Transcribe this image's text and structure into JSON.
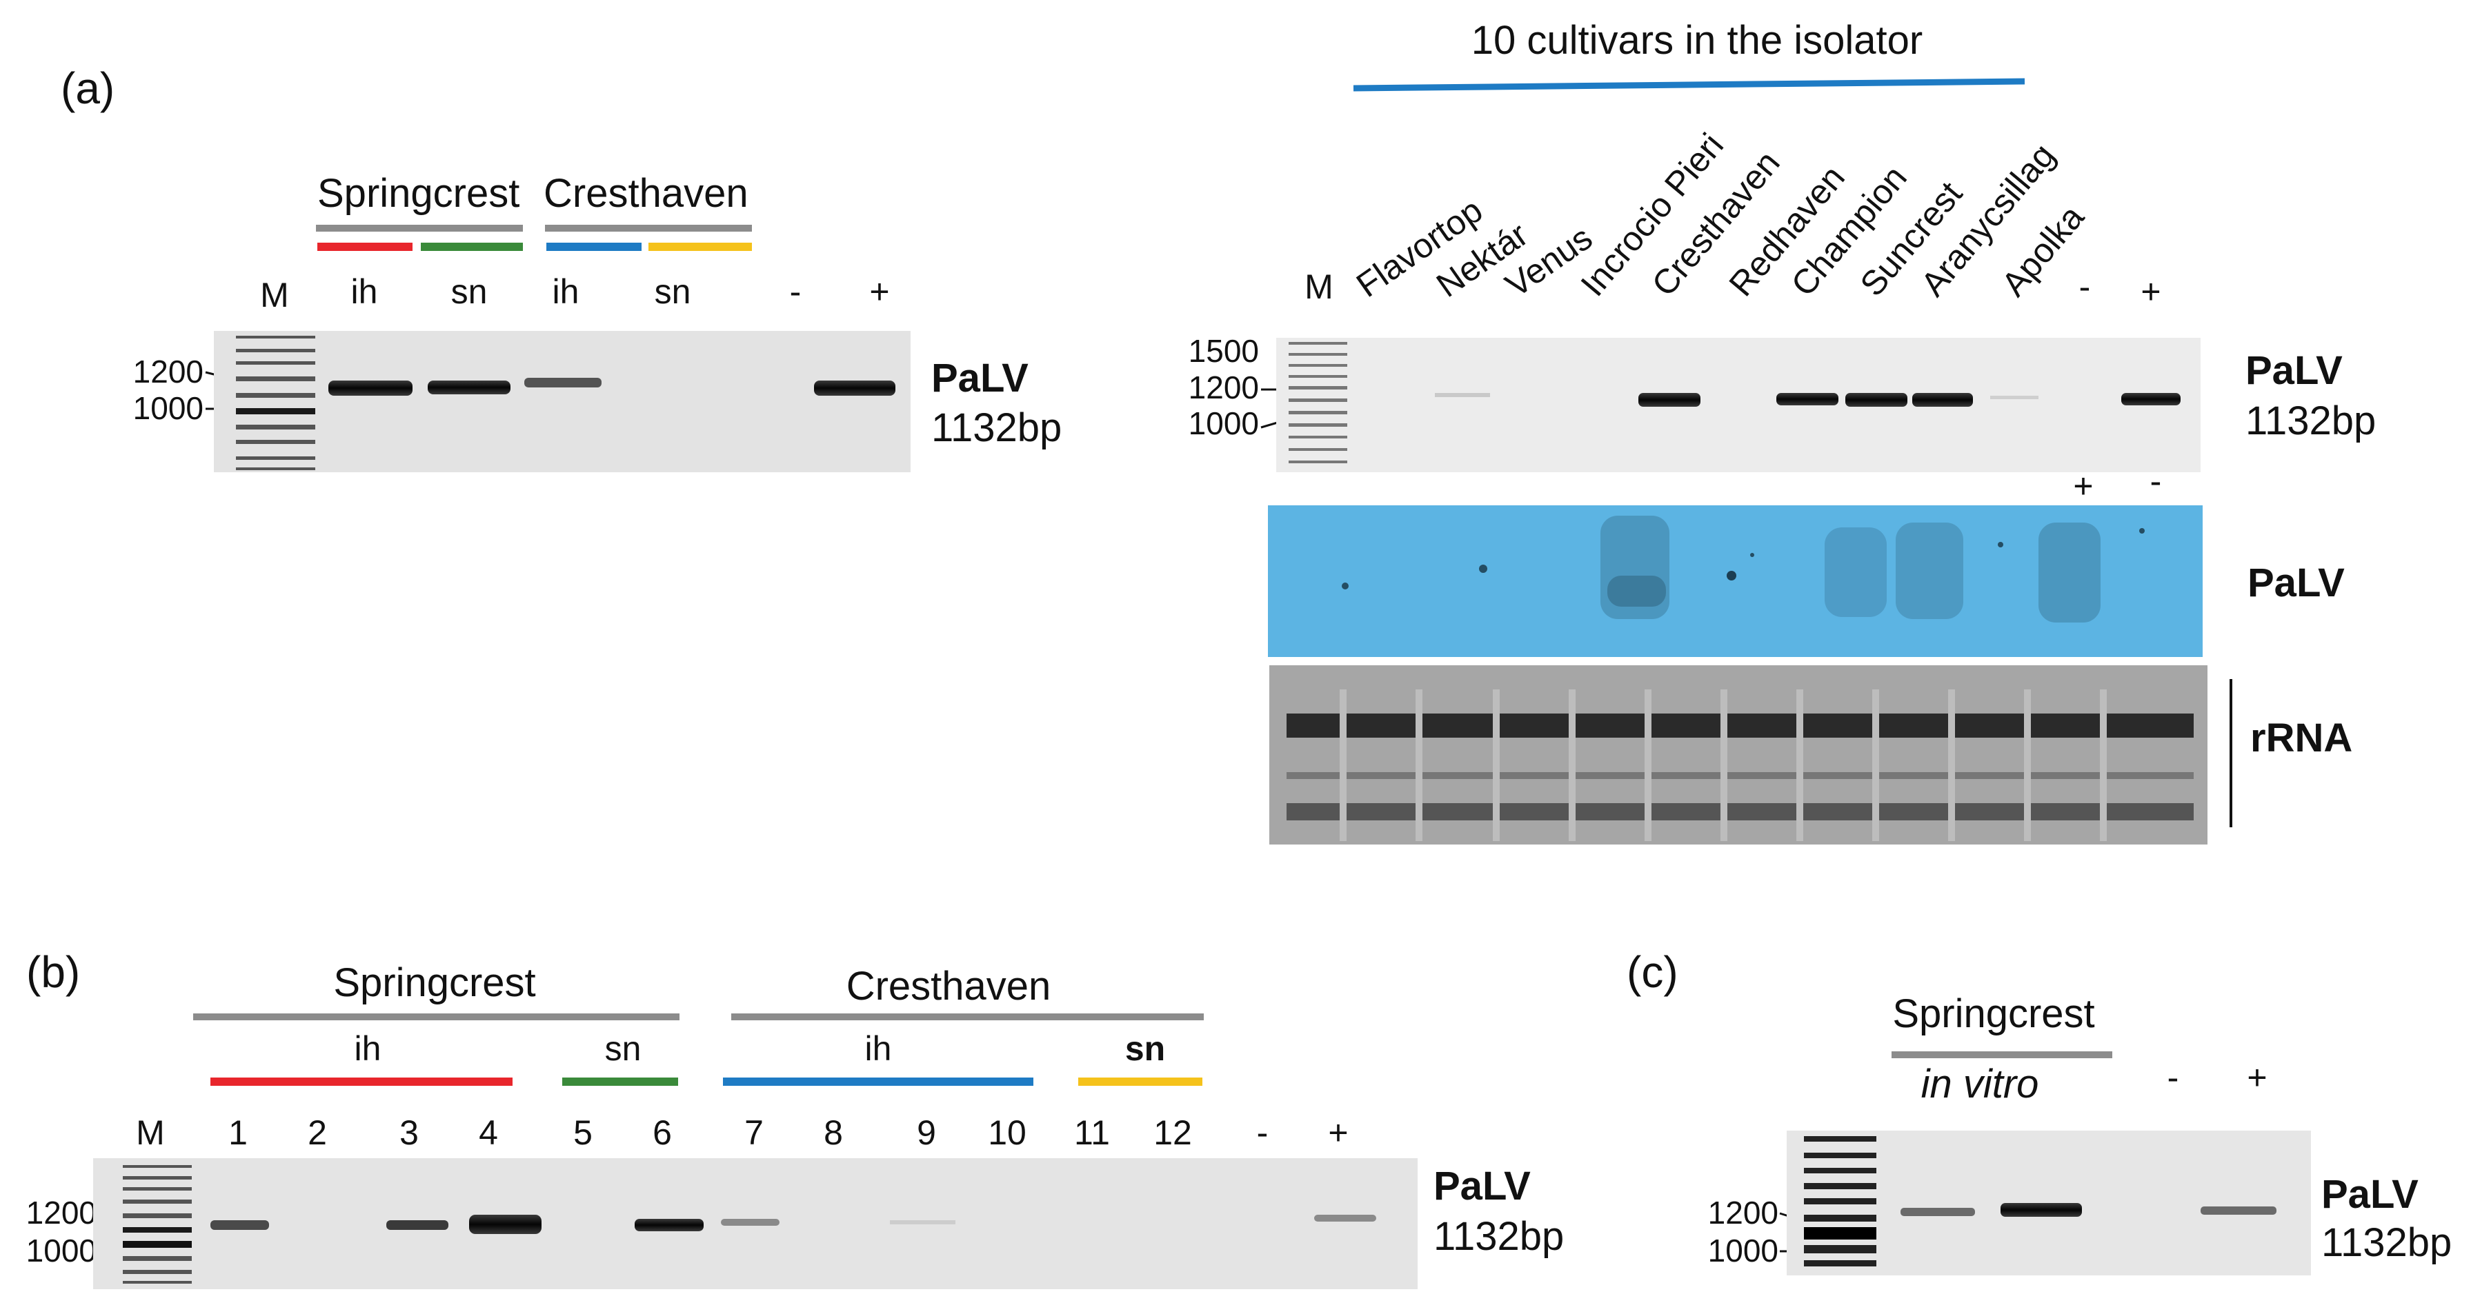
{
  "panel_a": {
    "label": "(a)",
    "left": {
      "groups": [
        "Springcrest",
        "Cresthaven"
      ],
      "lanes": [
        "M",
        "ih",
        "sn",
        "ih",
        "sn",
        "-",
        "+"
      ],
      "markers": [
        "1200",
        "1000"
      ],
      "virus": "PaLV",
      "size": "1132bp",
      "underline_colors": [
        "#e8262c",
        "#3a8a3a",
        "#1e7bc4",
        "#f5c21b"
      ]
    },
    "right": {
      "title": "10 cultivars in the isolator",
      "lanes": [
        "M",
        "Flavortop",
        "Nektár",
        "Venus",
        "Incrocio Pieri",
        "Cresthaven",
        "Redhaven",
        "Champion",
        "Suncrest",
        "Aranycsillag",
        "Apolka",
        "-",
        "+"
      ],
      "markers": [
        "1500",
        "1200",
        "1000"
      ],
      "virus": "PaLV",
      "size": "1132bp",
      "blot_controls": [
        "+",
        "-"
      ],
      "blot_label": "PaLV",
      "rrna_label": "rRNA",
      "title_line_color": "#1e7bc4"
    }
  },
  "panel_b": {
    "label": "(b)",
    "groups": [
      "Springcrest",
      "Cresthaven"
    ],
    "subgroups": [
      "ih",
      "sn",
      "ih",
      "sn"
    ],
    "lanes": [
      "M",
      "1",
      "2",
      "3",
      "4",
      "5",
      "6",
      "7",
      "8",
      "9",
      "10",
      "11",
      "12",
      "-",
      "+"
    ],
    "markers": [
      "1200",
      "1000"
    ],
    "virus": "PaLV",
    "size": "1132bp"
  },
  "panel_c": {
    "label": "(c)",
    "group": "Springcrest",
    "subgroup": "in vitro",
    "lanes": [
      "-",
      "+"
    ],
    "markers": [
      "1200",
      "1000"
    ],
    "virus": "PaLV",
    "size": "1132bp"
  }
}
